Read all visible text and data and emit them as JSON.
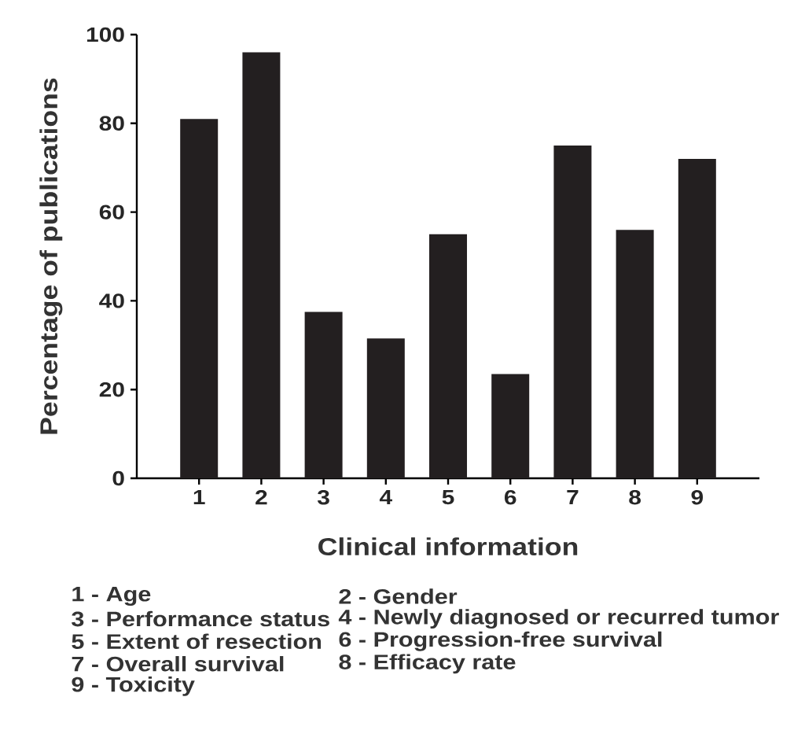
{
  "chart_data": {
    "type": "bar",
    "xlabel": "Clinical information",
    "ylabel": "Percentage of publications",
    "categories": [
      "1",
      "2",
      "3",
      "4",
      "5",
      "6",
      "7",
      "8",
      "9"
    ],
    "values": [
      81,
      96,
      37.5,
      31.5,
      55,
      23.5,
      75,
      56,
      72
    ],
    "color": "#231f20",
    "ylim": [
      0,
      100
    ],
    "yticks": [
      0,
      20,
      40,
      60,
      80,
      100
    ],
    "annotations": [
      "1 - Age",
      "2 - Gender",
      "3 - Performance status",
      "4 - Newly diagnosed or recurred tumor",
      "5 - Extent of resection",
      "6 - Progression-free survival",
      "7 - Overall survival",
      "8 - Efficacy rate",
      "9 - Toxicity"
    ]
  }
}
